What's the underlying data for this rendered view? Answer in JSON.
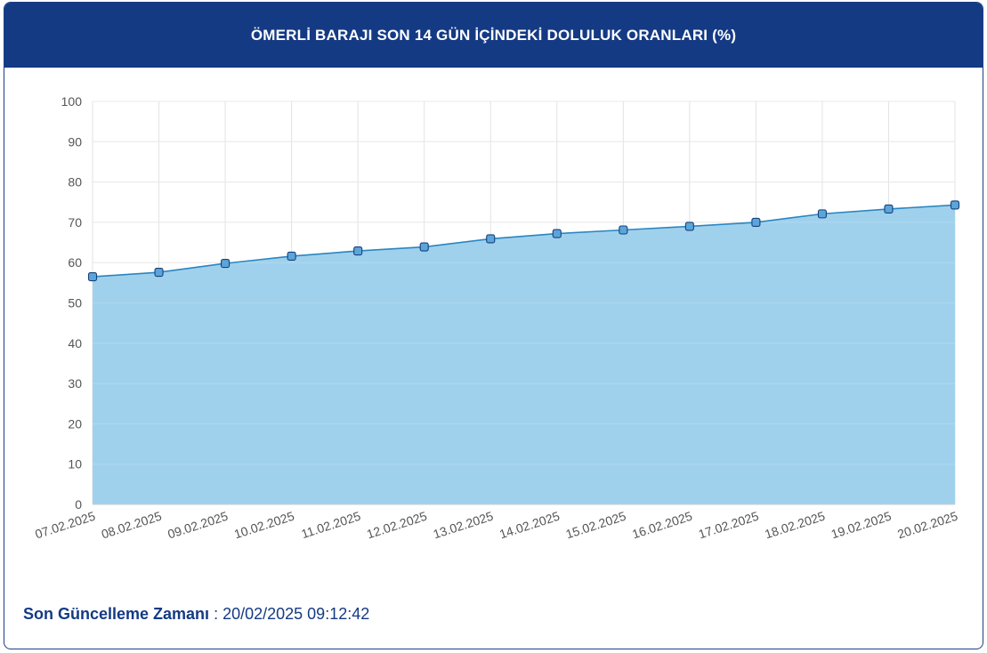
{
  "header": {
    "title": "ÖMERLİ BARAJI SON 14 GÜN İÇİNDEKİ DOLULUK ORANLARI (%)"
  },
  "footer": {
    "label": "Son Güncelleme Zamanı",
    "separator": " : ",
    "value": "20/02/2025 09:12:42"
  },
  "colors": {
    "header_bg": "#143a84",
    "area_fill": "#9fd1ed",
    "line": "#2a86c0",
    "marker_fill": "#5aa6da",
    "marker_stroke": "#1a3f7a",
    "grid": "#e3e3e3",
    "tick_text": "#555555"
  },
  "chart_data": {
    "type": "area",
    "title": "ÖMERLİ BARAJI SON 14 GÜN İÇİNDEKİ DOLULUK ORANLARI (%)",
    "xlabel": "",
    "ylabel": "",
    "ylim": [
      0,
      100
    ],
    "yticks": [
      0,
      10,
      20,
      30,
      40,
      50,
      60,
      70,
      80,
      90,
      100
    ],
    "grid": true,
    "legend": "none",
    "x": [
      "07.02.2025",
      "08.02.2025",
      "09.02.2025",
      "10.02.2025",
      "11.02.2025",
      "12.02.2025",
      "13.02.2025",
      "14.02.2025",
      "15.02.2025",
      "16.02.2025",
      "17.02.2025",
      "18.02.2025",
      "19.02.2025",
      "20.02.2025"
    ],
    "series": [
      {
        "values": [
          56.5,
          57.6,
          59.8,
          61.6,
          62.9,
          63.9,
          65.9,
          67.2,
          68.1,
          69.0,
          70.0,
          72.1,
          73.3,
          74.3
        ]
      }
    ]
  }
}
